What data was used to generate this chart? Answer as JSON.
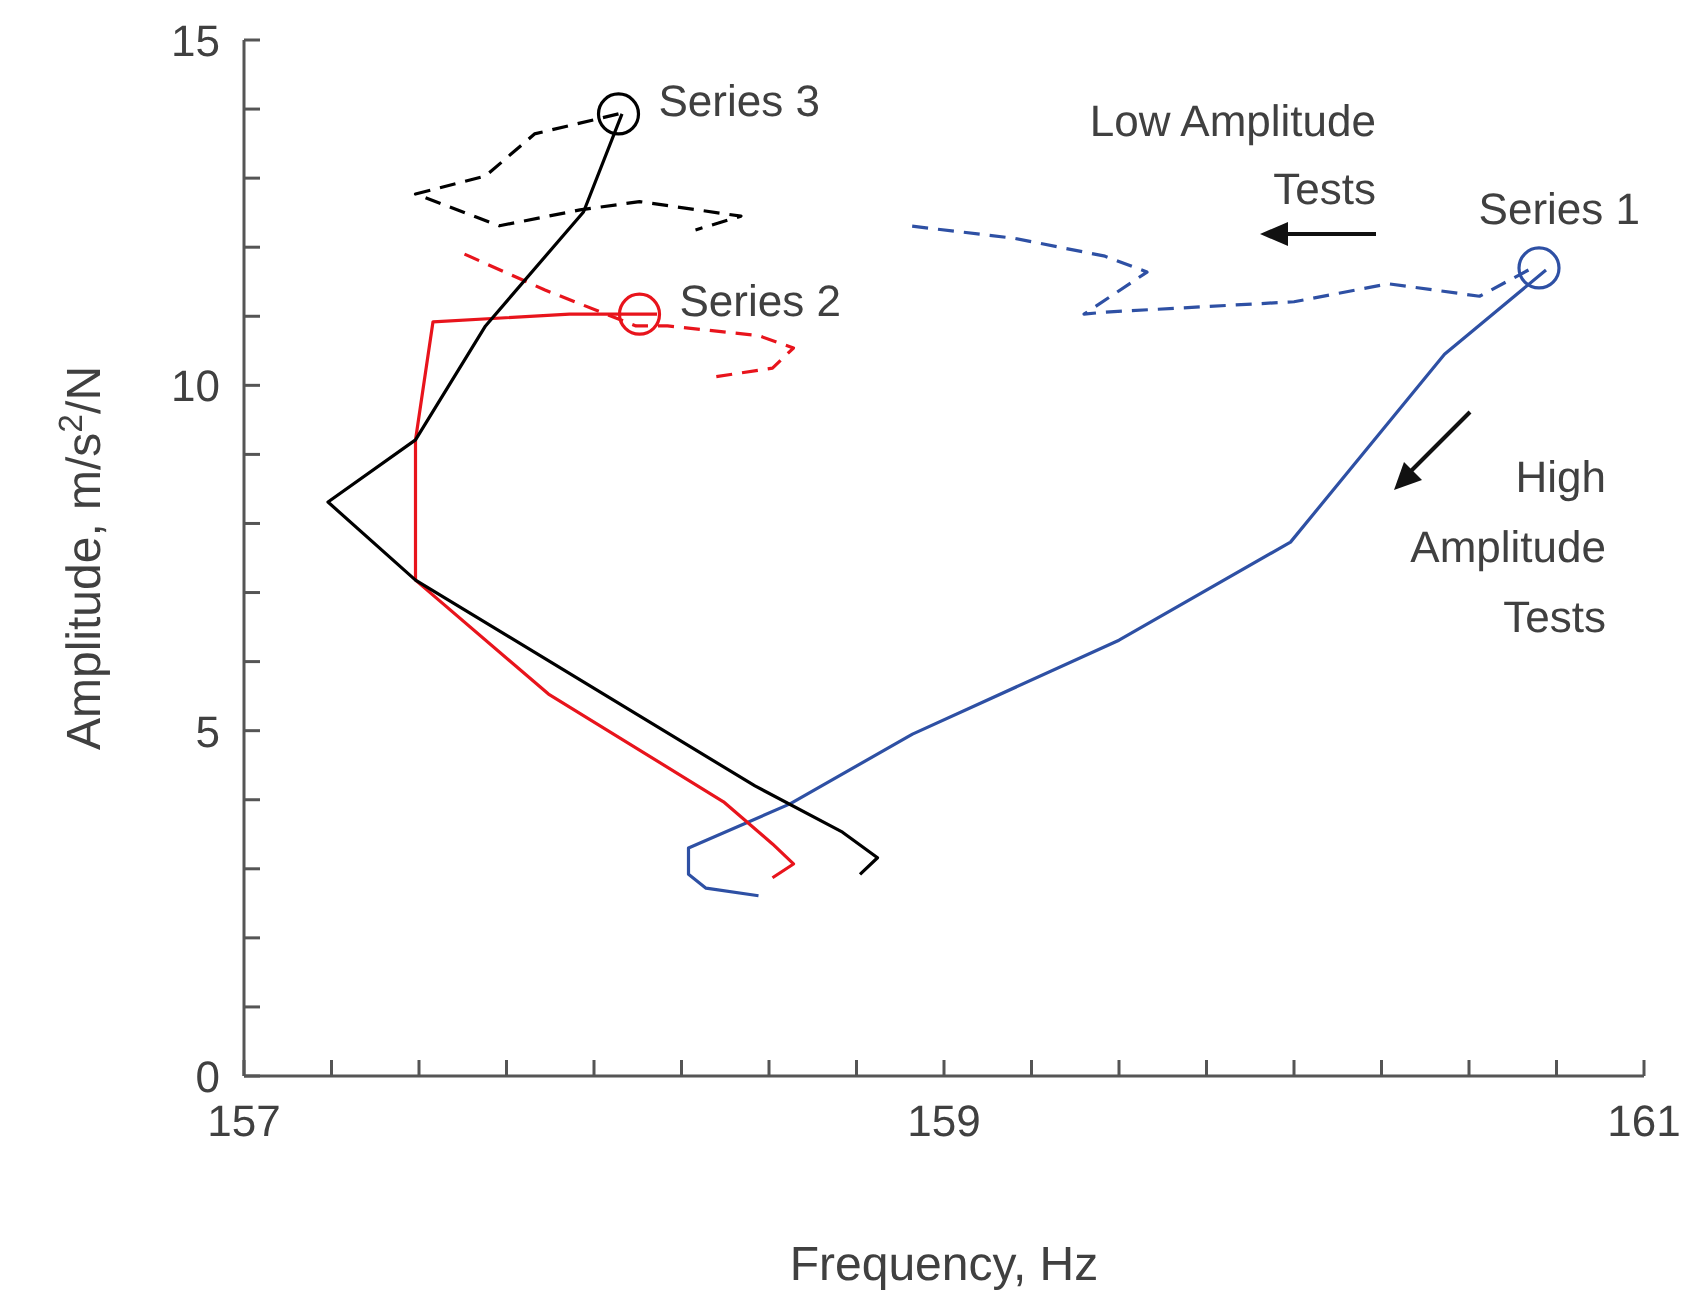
{
  "chart_data": {
    "type": "line",
    "xlabel": "Frequency, Hz",
    "ylabel": "Amplitude, m/s$^{2}$/N",
    "xlim": [
      157,
      161
    ],
    "ylim": [
      0,
      15
    ],
    "xticks": [
      157,
      {
        "value": 157.25,
        "label": null
      },
      {
        "value": 157.5,
        "label": null
      },
      {
        "value": 157.75,
        "label": null
      },
      {
        "value": 158,
        "label": null
      },
      {
        "value": 158.25,
        "label": null
      },
      {
        "value": 158.5,
        "label": null
      },
      {
        "value": 158.75,
        "label": null
      },
      159,
      {
        "value": 159.25,
        "label": null
      },
      {
        "value": 159.5,
        "label": null
      },
      {
        "value": 159.75,
        "label": null
      },
      {
        "value": 160,
        "label": null
      },
      {
        "value": 160.25,
        "label": null
      },
      {
        "value": 160.5,
        "label": null
      },
      {
        "value": 160.75,
        "label": null
      },
      161
    ],
    "yticks": [
      0,
      {
        "value": 1,
        "label": null
      },
      {
        "value": 2,
        "label": null
      },
      {
        "value": 3,
        "label": null
      },
      {
        "value": 4,
        "label": null
      },
      5,
      {
        "value": 6,
        "label": null
      },
      {
        "value": 7,
        "label": null
      },
      {
        "value": 8,
        "label": null
      },
      {
        "value": 9,
        "label": null
      },
      10,
      {
        "value": 11,
        "label": null
      },
      {
        "value": 12,
        "label": null
      },
      {
        "value": 13,
        "label": null
      },
      {
        "value": 14,
        "label": null
      },
      15
    ],
    "grid": false,
    "legend": false,
    "annotations": [
      "Low Amplitude Tests",
      "High Amplitude Tests"
    ],
    "series": [
      {
        "type": "line",
        "color": "#2e50a4",
        "line_style": "solid",
        "x": [
          160.72,
          160.43,
          159.99,
          159.5,
          158.91,
          158.56,
          158.27,
          158.27,
          158.32,
          158.47
        ],
        "values": [
          11.67,
          10.45,
          7.73,
          6.31,
          4.95,
          3.94,
          3.3,
          2.92,
          2.72,
          2.61
        ]
      },
      {
        "type": "line",
        "color": "#2e50a4",
        "line_style": "dashed",
        "x": [
          160.67,
          160.53,
          160.27,
          160.0,
          159.46,
          159.4,
          159.58,
          159.46,
          159.2,
          158.9
        ],
        "values": [
          11.67,
          11.29,
          11.47,
          11.21,
          11.06,
          11.03,
          11.64,
          11.87,
          12.13,
          12.31
        ]
      },
      {
        "type": "line",
        "color": "#e8141c",
        "line_style": "solid",
        "x": [
          158.18,
          157.93,
          157.54,
          157.49,
          157.49,
          157.87,
          158.37,
          158.51,
          158.57,
          158.51
        ],
        "values": [
          11.03,
          11.03,
          10.92,
          9.21,
          7.18,
          5.53,
          3.97,
          3.36,
          3.07,
          2.87
        ]
      },
      {
        "type": "line",
        "color": "#e8141c",
        "line_style": "dashed",
        "x": [
          157.63,
          157.86,
          158.12,
          158.21,
          158.47,
          158.57,
          158.51,
          158.33
        ],
        "values": [
          11.9,
          11.38,
          10.86,
          10.86,
          10.72,
          10.54,
          10.25,
          10.11
        ]
      },
      {
        "type": "line",
        "color": "#000000",
        "line_style": "solid",
        "x": [
          158.08,
          157.97,
          157.69,
          157.49,
          157.24,
          157.49,
          158.46,
          158.71,
          158.81,
          158.76
        ],
        "values": [
          13.93,
          12.51,
          10.86,
          9.21,
          8.31,
          7.18,
          4.2,
          3.53,
          3.16,
          2.92
        ]
      },
      {
        "type": "line",
        "color": "#000000",
        "line_style": "dashed",
        "x": [
          158.07,
          157.83,
          157.69,
          157.49,
          157.73,
          157.96,
          158.13,
          158.42,
          158.29
        ],
        "values": [
          13.93,
          13.64,
          13.03,
          12.77,
          12.31,
          12.54,
          12.66,
          12.45,
          12.25
        ]
      },
      {
        "type": "scatter",
        "name": "Series 1",
        "color": "#2e50a4",
        "marker": "circle",
        "x": [
          160.7
        ],
        "values": [
          11.7
        ]
      },
      {
        "type": "scatter",
        "name": "Series 2",
        "color": "#e8141c",
        "marker": "circle",
        "x": [
          158.13
        ],
        "values": [
          11.03
        ]
      },
      {
        "type": "scatter",
        "name": "Series 3",
        "color": "#000000",
        "marker": "circle",
        "x": [
          158.07
        ],
        "values": [
          13.93
        ]
      }
    ]
  }
}
